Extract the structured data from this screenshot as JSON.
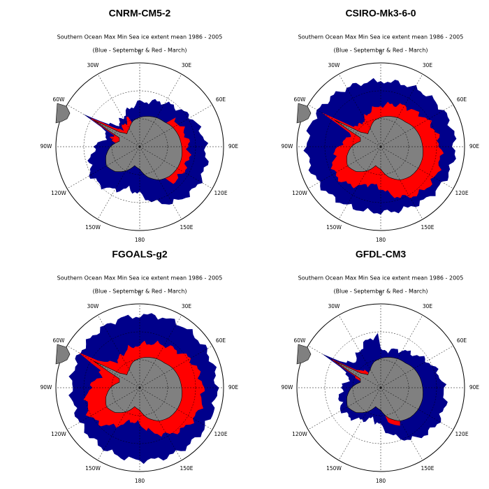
{
  "panels": [
    {
      "title": "CNRM-CM5-2",
      "subtitle": "Southern Ocean Max Min Sea ice extent mean 1986 - 2005",
      "subtitle2": "(Blue - September & Red - March)"
    },
    {
      "title": "CSIRO-Mk3-6-0",
      "subtitle": "Southern Ocean Max Min Sea ice extent mean 1986 - 2005",
      "subtitle2": "(Blue - September & Red - March)"
    },
    {
      "title": "FGOALS-g2",
      "subtitle": "Southern Ocean Max Min Sea ice extent mean 1986 - 2005",
      "subtitle2": "(Blue - September & Red - March)"
    },
    {
      "title": "GFDL-CM3",
      "subtitle": "Southern Ocean Max Min Sea ice extent mean 1986 - 2005",
      "subtitle2": "(Blue - September & Red - March)"
    }
  ],
  "longitude_labels": [
    "0",
    "30E",
    "60E",
    "90E",
    "120E",
    "150E",
    "180",
    "150W",
    "120W",
    "90W",
    "60W",
    "30W"
  ]
}
